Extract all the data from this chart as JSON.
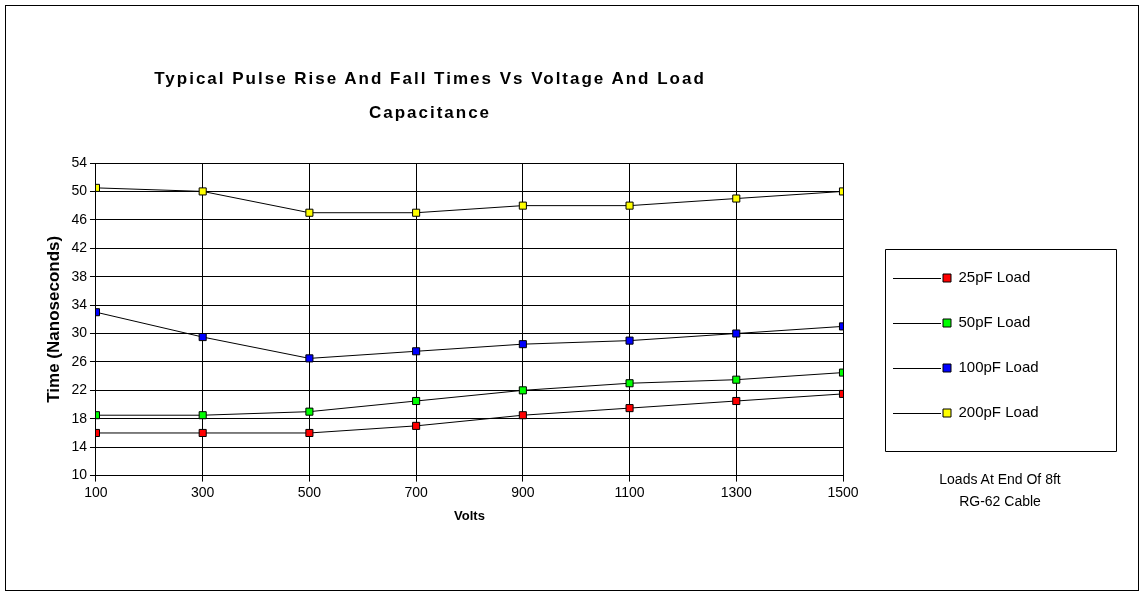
{
  "chart_data": {
    "type": "line",
    "title": "Typical Pulse Rise And Fall Times Vs Voltage And Load Capacitance",
    "xlabel": "Volts",
    "ylabel": "Time (Nanoseconds)",
    "x": [
      100,
      300,
      500,
      700,
      900,
      1100,
      1300,
      1500
    ],
    "series": [
      {
        "name": "25pF Load",
        "color": "#ff0000",
        "values": [
          16,
          16,
          16,
          17,
          18.5,
          19.5,
          20.5,
          21.5
        ]
      },
      {
        "name": "50pF Load",
        "color": "#00ff00",
        "values": [
          18.5,
          18.5,
          19,
          20.5,
          22,
          23,
          23.5,
          24.5
        ]
      },
      {
        "name": "100pF Load",
        "color": "#0000ff",
        "values": [
          33,
          29.5,
          26.5,
          27.5,
          28.5,
          29,
          30,
          31
        ]
      },
      {
        "name": "200pF Load",
        "color": "#ffff00",
        "values": [
          50.5,
          50,
          47,
          47,
          48,
          48,
          49,
          50
        ]
      }
    ],
    "xlim": [
      100,
      1500
    ],
    "xticks": [
      100,
      300,
      500,
      700,
      900,
      1100,
      1300,
      1500
    ],
    "ylim": [
      10,
      54
    ],
    "yticks": [
      10,
      14,
      18,
      22,
      26,
      30,
      34,
      38,
      42,
      46,
      50,
      54
    ],
    "grid": true,
    "legend": "right",
    "marker": "square",
    "line_style": "solid",
    "annotations": [
      "Loads At End Of 8ft RG-62 Cable"
    ]
  }
}
